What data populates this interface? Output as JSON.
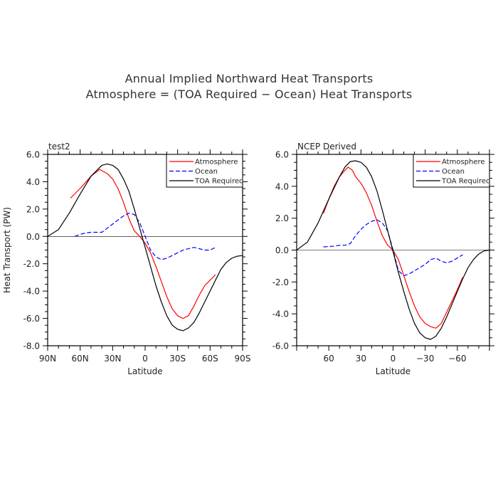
{
  "title": {
    "line1": "Annual Implied Northward Heat Transports",
    "line2": "Atmosphere = (TOA Required − Ocean) Heat Transports"
  },
  "chart_data": [
    {
      "type": "line",
      "panel_title": "test2",
      "xlabel": "Latitude",
      "ylabel": "Heat Transport (PW)",
      "xlim": [
        90,
        -90
      ],
      "ylim": [
        -8,
        6
      ],
      "x_ticks": [
        {
          "value": 90,
          "label": "90N"
        },
        {
          "value": 60,
          "label": "60N"
        },
        {
          "value": 30,
          "label": "30N"
        },
        {
          "value": 0,
          "label": "0"
        },
        {
          "value": -30,
          "label": "30S"
        },
        {
          "value": -60,
          "label": "60S"
        },
        {
          "value": -90,
          "label": "90S"
        }
      ],
      "y_ticks": [
        {
          "value": 6,
          "label": "6.0"
        },
        {
          "value": 4,
          "label": "4.0"
        },
        {
          "value": 2,
          "label": "2.0"
        },
        {
          "value": 0,
          "label": "0.0"
        },
        {
          "value": -2,
          "label": "-2.0"
        },
        {
          "value": -4,
          "label": "-4.0"
        },
        {
          "value": -6,
          "label": "-6.0"
        },
        {
          "value": -8,
          "label": "-8.0"
        }
      ],
      "zero_line": true,
      "legend_position": "top-right",
      "series": [
        {
          "name": "Atmosphere",
          "color": "#ff0000",
          "dash": "solid",
          "x": [
            69,
            60,
            50,
            42,
            35,
            30,
            25,
            20,
            15,
            10,
            5,
            0,
            -5,
            -10,
            -15,
            -20,
            -25,
            -30,
            -35,
            -40,
            -45,
            -50,
            -55,
            -60,
            -65
          ],
          "y": [
            2.8,
            3.5,
            4.4,
            4.9,
            4.6,
            4.2,
            3.5,
            2.5,
            1.3,
            0.4,
            0.0,
            -0.5,
            -1.2,
            -2.2,
            -3.3,
            -4.4,
            -5.3,
            -5.8,
            -6.0,
            -5.8,
            -5.1,
            -4.3,
            -3.6,
            -3.2,
            -2.8
          ]
        },
        {
          "name": "Ocean",
          "color": "#0000ff",
          "dash": "dashed",
          "x": [
            65,
            60,
            55,
            50,
            45,
            40,
            35,
            30,
            25,
            20,
            15,
            10,
            5,
            0,
            -5,
            -10,
            -15,
            -20,
            -25,
            -30,
            -35,
            -40,
            -45,
            -50,
            -55,
            -60,
            -65
          ],
          "y": [
            0.0,
            0.15,
            0.25,
            0.3,
            0.3,
            0.3,
            0.6,
            0.9,
            1.2,
            1.5,
            1.7,
            1.6,
            1.0,
            0.0,
            -1.0,
            -1.5,
            -1.7,
            -1.6,
            -1.4,
            -1.2,
            -1.0,
            -0.9,
            -0.8,
            -0.9,
            -1.0,
            -1.0,
            -0.8
          ]
        },
        {
          "name": "TOA Required",
          "color": "#000000",
          "dash": "solid",
          "x": [
            90,
            80,
            70,
            60,
            50,
            40,
            35,
            30,
            25,
            20,
            15,
            10,
            5,
            0,
            -5,
            -10,
            -15,
            -20,
            -25,
            -30,
            -35,
            -40,
            -45,
            -50,
            -55,
            -60,
            -65,
            -70,
            -75,
            -80,
            -85,
            -90
          ],
          "y": [
            0.0,
            0.5,
            1.7,
            3.1,
            4.4,
            5.2,
            5.3,
            5.2,
            4.9,
            4.2,
            3.3,
            2.0,
            0.6,
            -0.8,
            -2.2,
            -3.6,
            -4.8,
            -5.8,
            -6.5,
            -6.8,
            -6.9,
            -6.7,
            -6.3,
            -5.6,
            -4.8,
            -4.0,
            -3.2,
            -2.4,
            -1.9,
            -1.6,
            -1.45,
            -1.4
          ]
        }
      ]
    },
    {
      "type": "line",
      "panel_title": "NCEP Derived",
      "xlabel": "Latitude",
      "ylabel": "",
      "xlim": [
        90,
        -90
      ],
      "ylim": [
        -6,
        6
      ],
      "x_ticks": [
        {
          "value": 60,
          "label": "60"
        },
        {
          "value": 30,
          "label": "30"
        },
        {
          "value": 0,
          "label": "0"
        },
        {
          "value": -30,
          "label": "−30"
        },
        {
          "value": -60,
          "label": "−60"
        }
      ],
      "y_ticks": [
        {
          "value": 6,
          "label": "6.0"
        },
        {
          "value": 4,
          "label": "4.0"
        },
        {
          "value": 2,
          "label": "2.0"
        },
        {
          "value": 0,
          "label": "0.0"
        },
        {
          "value": -2,
          "label": "-2.0"
        },
        {
          "value": -4,
          "label": "-4.0"
        },
        {
          "value": -6,
          "label": "-6.0"
        }
      ],
      "zero_line": true,
      "legend_position": "top-right",
      "series": [
        {
          "name": "Atmosphere",
          "color": "#ff0000",
          "dash": "solid",
          "x": [
            65,
            60,
            55,
            50,
            45,
            42,
            38,
            35,
            30,
            25,
            20,
            15,
            10,
            5,
            0,
            -5,
            -10,
            -15,
            -20,
            -25,
            -30,
            -35,
            -40,
            -45,
            -50,
            -55,
            -60,
            -65
          ],
          "y": [
            2.3,
            3.2,
            4.0,
            4.6,
            5.0,
            5.2,
            5.0,
            4.6,
            4.2,
            3.6,
            2.8,
            1.8,
            0.9,
            0.3,
            0.0,
            -0.6,
            -1.6,
            -2.6,
            -3.5,
            -4.2,
            -4.6,
            -4.8,
            -4.9,
            -4.6,
            -3.9,
            -3.2,
            -2.5,
            -1.7
          ]
        },
        {
          "name": "Ocean",
          "color": "#0000ff",
          "dash": "dashed",
          "x": [
            65,
            60,
            55,
            50,
            45,
            40,
            35,
            30,
            25,
            20,
            15,
            10,
            5,
            0,
            -5,
            -10,
            -15,
            -20,
            -25,
            -30,
            -35,
            -40,
            -45,
            -50,
            -55,
            -60,
            -65
          ],
          "y": [
            0.2,
            0.22,
            0.25,
            0.3,
            0.3,
            0.4,
            0.9,
            1.3,
            1.6,
            1.8,
            1.9,
            1.7,
            1.2,
            0.0,
            -1.3,
            -1.6,
            -1.5,
            -1.3,
            -1.1,
            -0.9,
            -0.6,
            -0.5,
            -0.7,
            -0.8,
            -0.7,
            -0.5,
            -0.3
          ]
        },
        {
          "name": "TOA Required",
          "color": "#000000",
          "dash": "solid",
          "x": [
            90,
            80,
            70,
            60,
            50,
            45,
            40,
            35,
            30,
            25,
            20,
            15,
            10,
            5,
            0,
            -5,
            -10,
            -15,
            -20,
            -25,
            -30,
            -35,
            -40,
            -45,
            -50,
            -55,
            -60,
            -65,
            -70,
            -75,
            -80,
            -85,
            -90
          ],
          "y": [
            0.0,
            0.5,
            1.7,
            3.2,
            4.6,
            5.2,
            5.55,
            5.6,
            5.5,
            5.2,
            4.6,
            3.7,
            2.5,
            1.2,
            -0.1,
            -1.4,
            -2.6,
            -3.7,
            -4.6,
            -5.2,
            -5.5,
            -5.6,
            -5.4,
            -4.9,
            -4.2,
            -3.4,
            -2.6,
            -1.8,
            -1.1,
            -0.6,
            -0.25,
            -0.05,
            0.0
          ]
        }
      ]
    }
  ]
}
